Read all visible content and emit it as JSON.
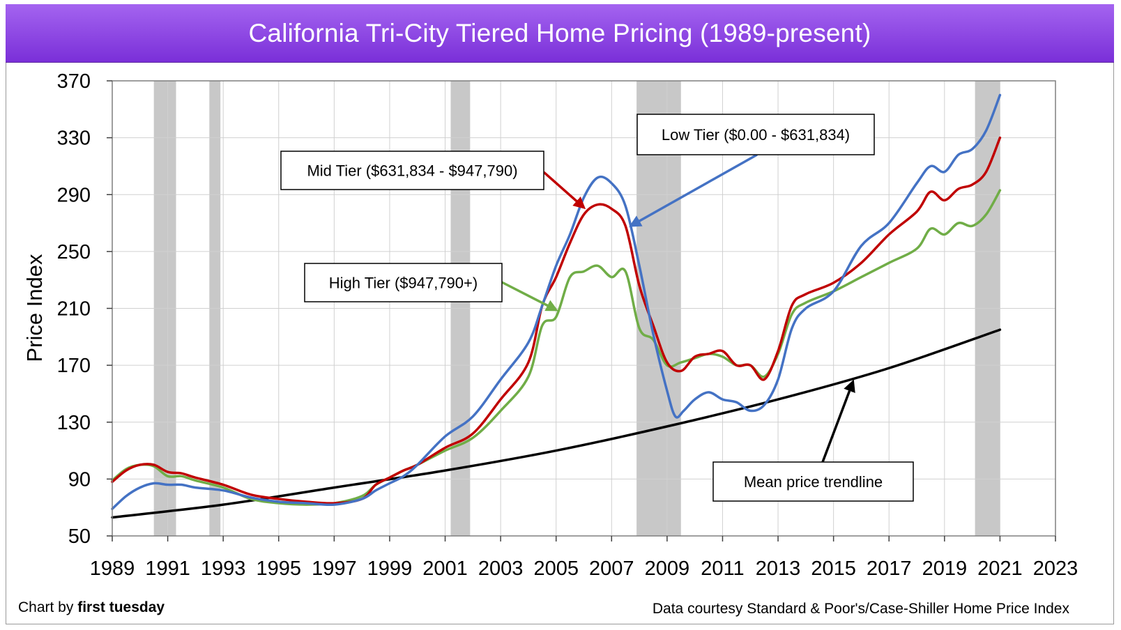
{
  "title": "California Tri-City Tiered Home Pricing (1989-present)",
  "credit_prefix": "Chart by ",
  "credit_brand": "first tuesday",
  "source": "Data courtesy Standard & Poor's/Case-Shiller Home Price Index",
  "colors": {
    "low": "#4472c4",
    "mid": "#c00000",
    "high": "#70ad47",
    "trend": "#000000",
    "recession": "#c8c8c8",
    "title_bg": "#8b45e6"
  },
  "chart_data": {
    "type": "line",
    "title": "California Tri-City Tiered Home Pricing (1989-present)",
    "xlabel": "",
    "ylabel": "Price Index",
    "xlim": [
      1989,
      2023
    ],
    "ylim": [
      50,
      370
    ],
    "xticks": [
      1989,
      1991,
      1993,
      1995,
      1997,
      1999,
      2001,
      2003,
      2005,
      2007,
      2009,
      2011,
      2013,
      2015,
      2017,
      2019,
      2021,
      2023
    ],
    "yticks": [
      50,
      90,
      130,
      170,
      210,
      250,
      290,
      330,
      370
    ],
    "grid": true,
    "recessions": [
      [
        1990.5,
        1991.3
      ],
      [
        1992.5,
        1992.9
      ],
      [
        2001.2,
        2001.9
      ],
      [
        2007.9,
        2009.5
      ],
      [
        2020.1,
        2021.0
      ]
    ],
    "series": [
      {
        "name": "Low Tier ($0.00 - $631,834)",
        "key": "low",
        "x": [
          1989,
          1989.5,
          1990,
          1990.5,
          1991,
          1991.5,
          1992,
          1993,
          1994,
          1995,
          1996,
          1997,
          1998,
          1998.5,
          1999,
          1999.5,
          2000,
          2001,
          2002,
          2003,
          2004,
          2004.5,
          2005,
          2005.5,
          2006,
          2006.5,
          2007,
          2007.5,
          2008,
          2008.5,
          2009,
          2009.3,
          2009.6,
          2010,
          2010.5,
          2011,
          2011.5,
          2012,
          2012.5,
          2013,
          2013.5,
          2014,
          2015,
          2016,
          2017,
          2018,
          2018.5,
          2019,
          2019.5,
          2020,
          2020.5,
          2021
        ],
        "values": [
          69,
          78,
          84,
          87,
          86,
          86,
          84,
          82,
          77,
          74,
          73,
          72,
          76,
          82,
          87,
          92,
          100,
          120,
          134,
          160,
          186,
          212,
          240,
          262,
          288,
          302,
          298,
          282,
          240,
          192,
          152,
          134,
          138,
          146,
          151,
          146,
          144,
          138,
          142,
          160,
          196,
          210,
          222,
          254,
          270,
          298,
          310,
          306,
          318,
          322,
          335,
          360
        ]
      },
      {
        "name": "Mid Tier ($631,834 - $947,790)",
        "key": "mid",
        "x": [
          1989,
          1989.5,
          1990,
          1990.5,
          1991,
          1991.5,
          1992,
          1993,
          1994,
          1995,
          1996,
          1997,
          1998,
          1998.5,
          1999,
          1999.5,
          2000,
          2001,
          2002,
          2003,
          2004,
          2004.5,
          2005,
          2005.5,
          2006,
          2006.5,
          2007,
          2007.5,
          2008,
          2008.5,
          2009,
          2009.5,
          2010,
          2010.5,
          2011,
          2011.5,
          2012,
          2012.5,
          2013,
          2013.5,
          2014,
          2015,
          2016,
          2017,
          2018,
          2018.5,
          2019,
          2019.5,
          2020,
          2020.5,
          2021
        ],
        "values": [
          88,
          96,
          100,
          100,
          95,
          94,
          91,
          86,
          79,
          76,
          74,
          73,
          76,
          86,
          91,
          96,
          100,
          112,
          122,
          146,
          172,
          212,
          232,
          256,
          276,
          283,
          280,
          268,
          226,
          198,
          172,
          166,
          176,
          178,
          180,
          170,
          170,
          160,
          180,
          212,
          220,
          228,
          242,
          262,
          278,
          292,
          286,
          294,
          297,
          306,
          330
        ]
      },
      {
        "name": "High Tier ($947,790+)",
        "key": "high",
        "x": [
          1989,
          1989.5,
          1990,
          1990.5,
          1991,
          1991.5,
          1992,
          1993,
          1994,
          1995,
          1996,
          1997,
          1998,
          1998.5,
          1999,
          1999.5,
          2000,
          2001,
          2002,
          2003,
          2004,
          2004.5,
          2005,
          2005.5,
          2006,
          2006.5,
          2007,
          2007.5,
          2008,
          2008.5,
          2009,
          2009.5,
          2010,
          2010.5,
          2011,
          2011.5,
          2012,
          2012.5,
          2013,
          2013.5,
          2014,
          2015,
          2016,
          2017,
          2018,
          2018.5,
          2019,
          2019.5,
          2020,
          2020.5,
          2021
        ],
        "values": [
          89,
          97,
          100,
          99,
          92,
          92,
          89,
          84,
          76,
          73,
          72,
          73,
          78,
          86,
          91,
          96,
          100,
          110,
          119,
          138,
          162,
          198,
          204,
          232,
          236,
          240,
          232,
          236,
          196,
          188,
          170,
          172,
          175,
          178,
          176,
          170,
          170,
          162,
          178,
          206,
          214,
          222,
          232,
          242,
          252,
          266,
          262,
          270,
          268,
          276,
          293
        ]
      },
      {
        "name": "Mean price trendline",
        "key": "trend",
        "x": [
          1989,
          1993,
          1997,
          2001,
          2005,
          2009,
          2013,
          2017,
          2021
        ],
        "values": [
          63,
          72,
          84,
          96,
          110,
          127,
          146,
          168,
          195
        ]
      }
    ],
    "annotations": [
      {
        "label": "Low Tier ($0.00 - $631,834)",
        "series": "low"
      },
      {
        "label": "Mid Tier ($631,834 - $947,790)",
        "series": "mid"
      },
      {
        "label": "High Tier ($947,790+)",
        "series": "high"
      },
      {
        "label": "Mean price trendline",
        "series": "trend"
      }
    ]
  }
}
